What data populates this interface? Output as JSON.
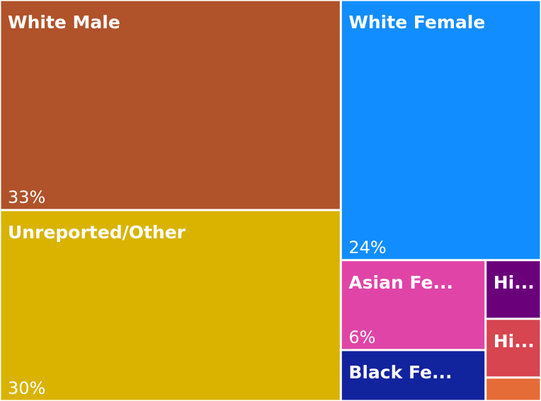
{
  "chart_data": {
    "type": "treemap",
    "categories": [
      "White Male",
      "Unreported/Other",
      "White Female",
      "Asian Fe...",
      "Black Fe...",
      "Hi...",
      "Hi...",
      null
    ],
    "values": [
      33,
      30,
      24,
      6,
      3.4,
      1.5,
      1.5,
      0.6
    ],
    "value_labels": [
      "33%",
      "30%",
      "24%",
      "6%",
      null,
      null,
      null,
      null
    ],
    "colors": [
      "#b0522a",
      "#d9b300",
      "#118dff",
      "#e044a7",
      "#12239e",
      "#6b007b",
      "#d64550",
      "#e66c37"
    ]
  }
}
